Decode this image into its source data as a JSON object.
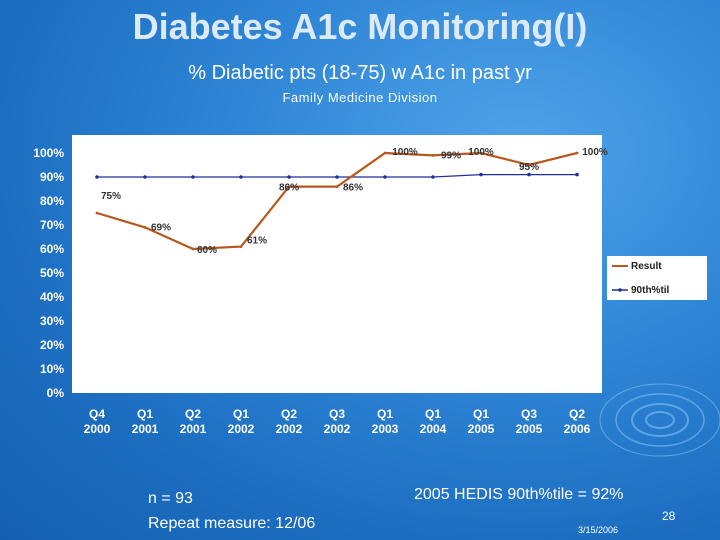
{
  "slide": {
    "title": "Diabetes A1c Monitoring(I)",
    "subtitle": "% Diabetic pts (18-75) w A1c in past yr",
    "division": "Family Medicine Division",
    "note_n": "n = 93",
    "note_repeat": "Repeat measure: 12/06",
    "note_hedis": "2005 HEDIS 90th%tile = 92%",
    "date": "3/15/2006",
    "page_number": "28"
  },
  "colors": {
    "result_line": "#b8581e",
    "benchmark_line": "#1f2f9c",
    "plot_background": "#ffffff",
    "slide_background": "#2f86d6"
  },
  "chart_data": {
    "type": "line",
    "title": "",
    "xlabel": "",
    "ylabel": "",
    "ylim": [
      0,
      100
    ],
    "y_ticks": [
      "0%",
      "10%",
      "20%",
      "30%",
      "40%",
      "50%",
      "60%",
      "70%",
      "80%",
      "90%",
      "100%"
    ],
    "categories": [
      [
        "Q4",
        "2000"
      ],
      [
        "Q1",
        "2001"
      ],
      [
        "Q2",
        "2001"
      ],
      [
        "Q1",
        "2002"
      ],
      [
        "Q2",
        "2002"
      ],
      [
        "Q3",
        "2002"
      ],
      [
        "Q1",
        "2003"
      ],
      [
        "Q1",
        "2004"
      ],
      [
        "Q1",
        "2005"
      ],
      [
        "Q3",
        "2005"
      ],
      [
        "Q2",
        "2006"
      ]
    ],
    "series": [
      {
        "name": "Result",
        "values": [
          75,
          69,
          60,
          61,
          86,
          86,
          100,
          99,
          100,
          95,
          100
        ],
        "labels": [
          "75%",
          "69%",
          "60%",
          "61%",
          "86%",
          "86%",
          "100%",
          "99%",
          "100%",
          "95%",
          "100%"
        ]
      },
      {
        "name": "90th%til",
        "values": [
          90,
          90,
          90,
          90,
          90,
          90,
          90,
          90,
          91,
          91,
          91
        ]
      }
    ],
    "legend_position": "right",
    "grid": false
  }
}
